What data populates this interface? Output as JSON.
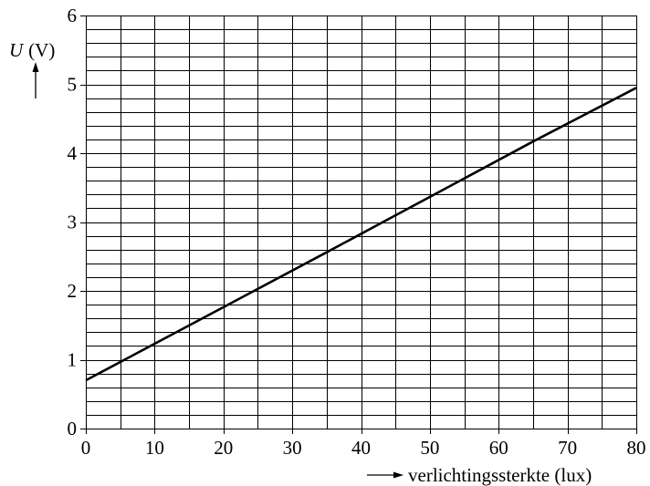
{
  "chart_data": {
    "type": "line",
    "title": "",
    "xlabel": "verlichtingssterkte (lux)",
    "ylabel_var": "U",
    "ylabel_unit": "(V)",
    "xlim": [
      0,
      80
    ],
    "ylim": [
      0,
      6
    ],
    "x_ticks": [
      "0",
      "10",
      "20",
      "30",
      "40",
      "50",
      "60",
      "70",
      "80"
    ],
    "y_ticks": [
      "0",
      "1",
      "2",
      "3",
      "4",
      "5",
      "6"
    ],
    "x_minor_step": 5,
    "y_minor_step": 0.2,
    "grid": true,
    "series": [
      {
        "x": [
          0,
          35,
          65,
          80
        ],
        "y": [
          0.7,
          2.56,
          4.17,
          4.95
        ]
      }
    ]
  }
}
